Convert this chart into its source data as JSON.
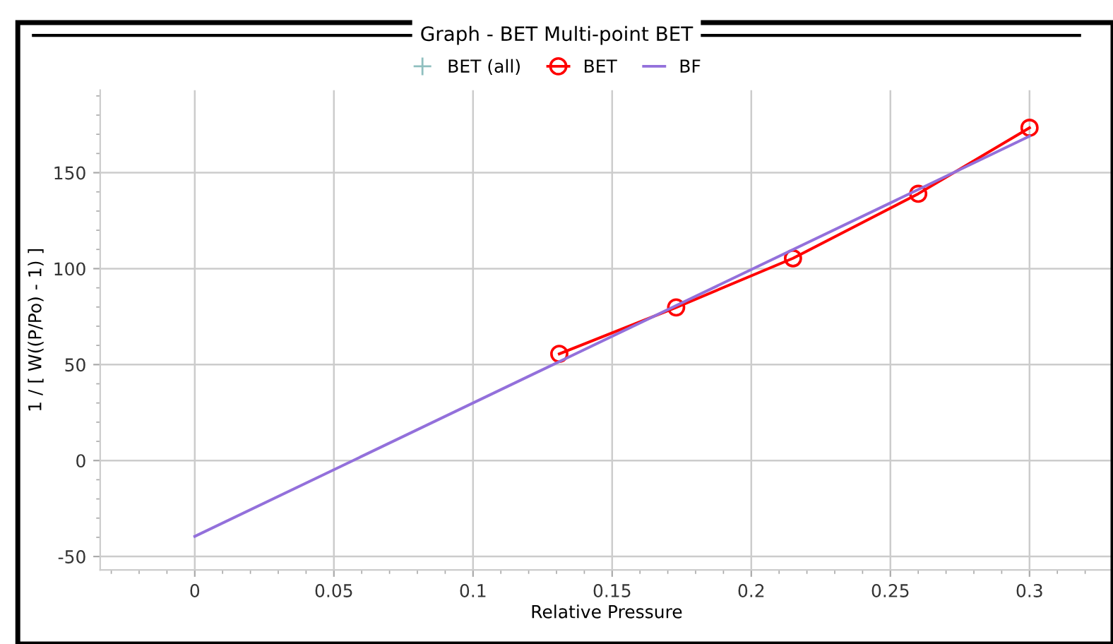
{
  "chart_data": {
    "type": "line",
    "title": "Graph - BET Multi-point BET",
    "xlabel": "Relative Pressure",
    "ylabel": "1 / [ W((P/Po) - 1) ]",
    "x": [
      0.131,
      0.173,
      0.215,
      0.26,
      0.3
    ],
    "series": [
      {
        "name": "BET (all)",
        "color": "#8fbfbf",
        "marker": "cross",
        "type": "scatter",
        "values": [
          null,
          null,
          null,
          null,
          null
        ]
      },
      {
        "name": "BET",
        "color": "#ff0000",
        "marker": "circle",
        "values": [
          55.6,
          79.8,
          105.4,
          139,
          173.4
        ]
      },
      {
        "name": "BF",
        "color": "#9370db",
        "marker": "none",
        "x": [
          0,
          0.3
        ],
        "values": [
          -39.5,
          169
        ]
      }
    ],
    "xlim": [
      -0.034,
      0.33
    ],
    "ylim": [
      -57,
      193
    ],
    "xticks": [
      0,
      0.05,
      0.1,
      0.15,
      0.2,
      0.25,
      0.3
    ],
    "yticks": [
      -50,
      0,
      50,
      100,
      150
    ],
    "grid": true,
    "legend": "top",
    "line_style": "solid"
  }
}
